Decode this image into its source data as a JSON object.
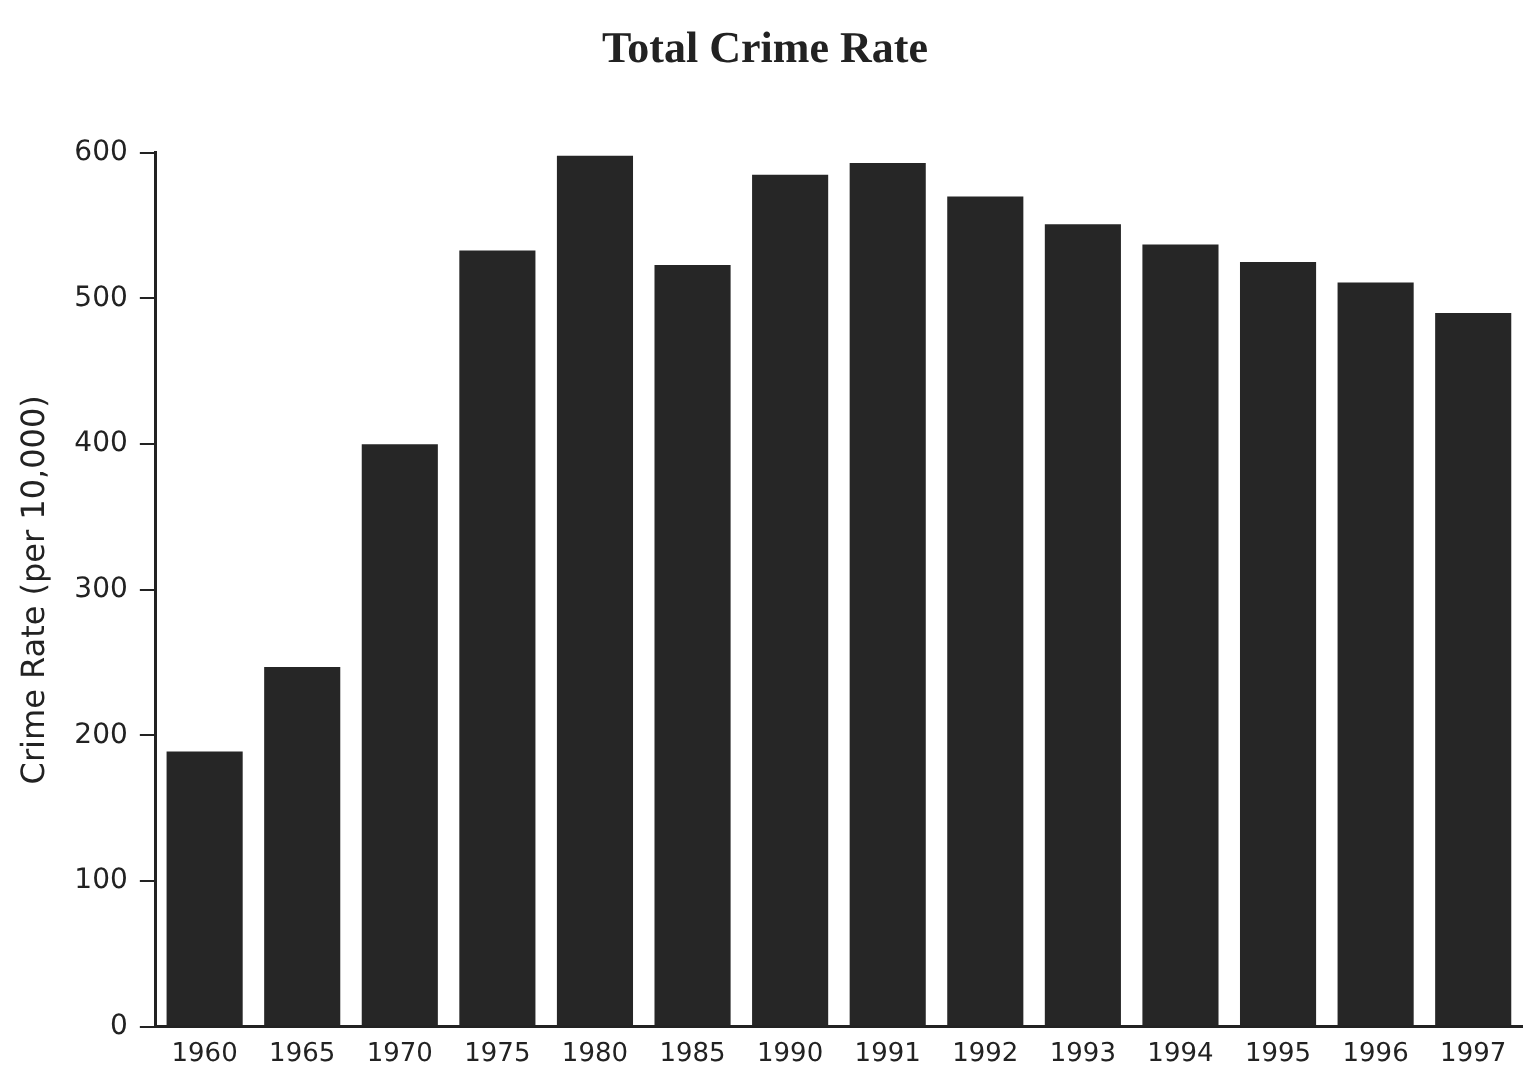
{
  "chart_data": {
    "type": "bar",
    "title": "Total Crime Rate",
    "ylabel": "Crime Rate (per 10,000)",
    "categories": [
      "1960",
      "1965",
      "1970",
      "1975",
      "1980",
      "1985",
      "1990",
      "1991",
      "1992",
      "1993",
      "1994",
      "1995",
      "1996",
      "1997"
    ],
    "values": [
      189,
      247,
      400,
      533,
      598,
      523,
      585,
      593,
      570,
      551,
      537,
      525,
      511,
      490
    ],
    "color": "#262626",
    "ylim": [
      0,
      600
    ],
    "yticks": [
      0,
      100,
      200,
      300,
      400,
      500,
      600
    ],
    "grid": false,
    "legend": false
  }
}
